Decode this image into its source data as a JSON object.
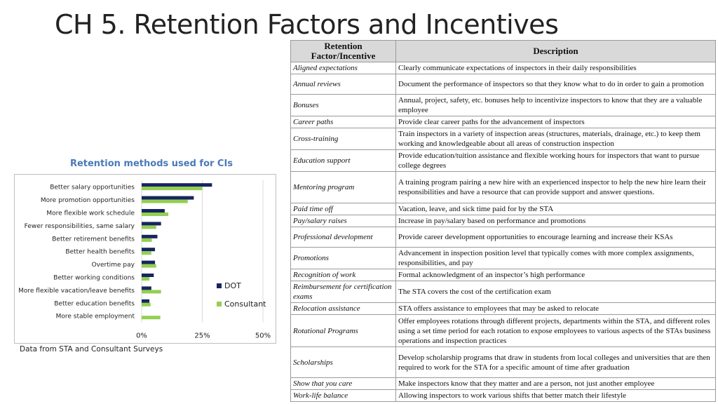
{
  "slide": {
    "title": "CH 5. Retention Factors and Incentives",
    "source_note": "Data from STA and Consultant Surveys"
  },
  "table": {
    "headers": {
      "factor": "Retention Factor/Incentive",
      "description": "Description"
    },
    "rows": [
      {
        "factor": "Aligned expectations",
        "description": "Clearly communicate expectations of inspectors in their daily responsibilities"
      },
      {
        "factor": "Annual reviews",
        "description": "Document the performance of inspectors so that they know what to do in order to gain a promotion"
      },
      {
        "factor": "Bonuses",
        "description": "Annual, project, safety, etc. bonuses help to incentivize inspectors to know that they are a valuable employee"
      },
      {
        "factor": "Career paths",
        "description": "Provide clear career paths for the advancement of inspectors"
      },
      {
        "factor": "Cross-training",
        "description": "Train inspectors in a variety of inspection areas (structures, materials, drainage, etc.) to keep them working and knowledgeable about all areas of construction inspection"
      },
      {
        "factor": "Education support",
        "description": "Provide education/tuition assistance and flexible working hours for inspectors that want to pursue college degrees"
      },
      {
        "factor": "Mentoring program",
        "description": "A training program pairing a new hire with an experienced inspector to help the new hire learn their responsibilities and have a resource that can provide support and answer questions."
      },
      {
        "factor": "Paid time off",
        "description": "Vacation, leave, and sick time paid for by the STA"
      },
      {
        "factor": "Pay/salary raises",
        "description": "Increase in pay/salary based on performance and promotions"
      },
      {
        "factor": "Professional development",
        "description": "Provide career development opportunities to encourage learning and increase their KSAs"
      },
      {
        "factor": "Promotions",
        "description": "Advancement in inspection position level that typically comes with more complex assignments, responsibilities, and pay"
      },
      {
        "factor": "Recognition of work",
        "description": "Formal acknowledgment of an inspector’s high performance"
      },
      {
        "factor": "Reimbursement for certification exams",
        "description": "The STA covers the cost of the certification exam"
      },
      {
        "factor": "Relocation assistance",
        "description": "STA offers assistance to employees that may be asked to relocate"
      },
      {
        "factor": "Rotational Programs",
        "description": "Offer employees rotations through different projects, departments within the STA, and different roles using a set time period for each rotation to expose employees to various aspects of the STAs business operations and inspection practices"
      },
      {
        "factor": "Scholarships",
        "description": "Develop scholarship programs that draw in students from local colleges and universities that are then required to work for the STA for a specific amount of time after graduation"
      },
      {
        "factor": "Show that you care",
        "description": "Make inspectors know that they matter and are a person, not just another employee"
      },
      {
        "factor": "Work-life balance",
        "description": "Allowing inspectors to work various shifts that better match their lifestyle"
      }
    ]
  },
  "chart_data": {
    "type": "bar",
    "orientation": "horizontal",
    "title": "Retention methods used for CIs",
    "categories": [
      "Better salary opportunities",
      "More promotion opportunities",
      "More flexible work schedule",
      "Fewer responsibilities, same salary",
      "Better retirement benefits",
      "Better health benefits",
      "Overtime pay",
      "Better working conditions",
      "More flexible vacation/leave benefits",
      "Better education benefits",
      "More stable employment"
    ],
    "series": [
      {
        "name": "DOT",
        "color": "#17255e",
        "values": [
          29,
          21.5,
          9.5,
          8,
          6.5,
          5.5,
          5.5,
          5,
          4,
          3.2,
          0
        ]
      },
      {
        "name": "Consultant",
        "color": "#92d050",
        "values": [
          25,
          19,
          11,
          6,
          4.2,
          4,
          6,
          3.2,
          8,
          3.7,
          7.7
        ]
      }
    ],
    "x_ticks": [
      "0%",
      "25%",
      "50%"
    ],
    "xlim": [
      0,
      50
    ],
    "grid": true,
    "legend_position": "right"
  }
}
